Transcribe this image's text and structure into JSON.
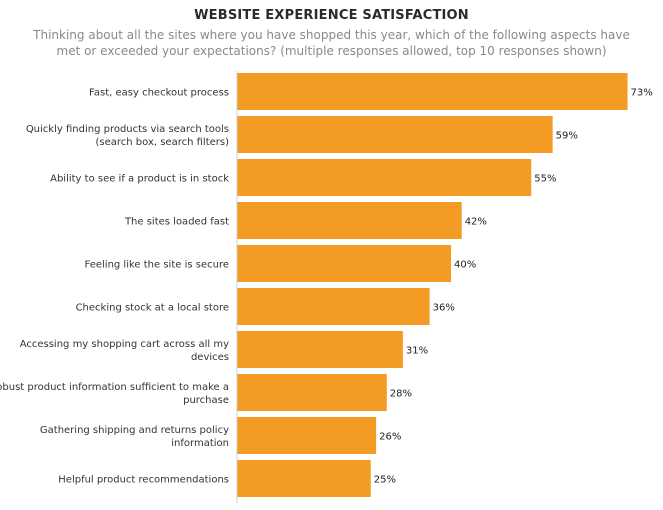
{
  "colors": {
    "bar": "#f39b22",
    "axis": "#cccccc",
    "text": "#333333"
  },
  "chart_data": {
    "type": "bar",
    "orientation": "horizontal",
    "title": "WEBSITE EXPERIENCE SATISFACTION",
    "subtitle": "Thinking about all the sites where you have shopped this year, which of the following aspects have met or exceeded your expectations? (multiple responses allowed, top 10 responses shown)",
    "categories": [
      "Fast, easy checkout process",
      "Quickly finding products via search tools (search box, search filters)",
      "Ability to see if a product is in stock",
      "The sites loaded fast",
      "Feeling like the site is secure",
      "Checking stock at a local store",
      "Accessing my shopping cart across all my devices",
      "Robust product information sufficient to make a purchase",
      "Gathering shipping and returns policy information",
      "Helpful product recommendations"
    ],
    "category_lines": [
      [
        "Fast, easy checkout process"
      ],
      [
        "Quickly finding products via search tools",
        "(search box, search filters)"
      ],
      [
        "Ability to see if a product is in stock"
      ],
      [
        "The sites loaded fast"
      ],
      [
        "Feeling like the site is secure"
      ],
      [
        "Checking stock at a local store"
      ],
      [
        "Accessing my shopping cart across all my",
        "devices"
      ],
      [
        "Robust product information sufficient to make a",
        "purchase"
      ],
      [
        "Gathering shipping and returns policy",
        "information"
      ],
      [
        "Helpful product recommendations"
      ]
    ],
    "values": [
      73,
      59,
      55,
      42,
      40,
      36,
      31,
      28,
      26,
      25
    ],
    "value_labels": [
      "73%",
      "59%",
      "55%",
      "42%",
      "40%",
      "36%",
      "31%",
      "28%",
      "26%",
      "25%"
    ],
    "xlim": [
      0,
      73
    ],
    "grid": false,
    "legend": "none"
  }
}
